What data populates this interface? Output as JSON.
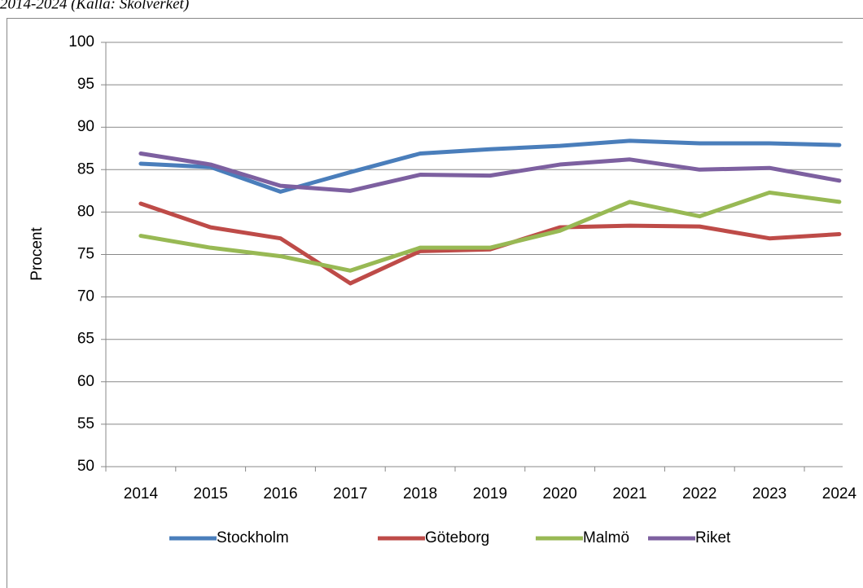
{
  "chart_data": {
    "type": "line",
    "subtitle": "2014-2024 (Källa: Skolverket)",
    "y_label": "Procent",
    "categories": [
      "2014",
      "2015",
      "2016",
      "2017",
      "2018",
      "2019",
      "2020",
      "2021",
      "2022",
      "2023",
      "2024"
    ],
    "series": [
      {
        "name": "Stockholm",
        "color": "#4a7ebb",
        "values": [
          85.7,
          85.3,
          82.4,
          84.7,
          86.9,
          87.4,
          87.8,
          88.4,
          88.1,
          88.1,
          87.9
        ]
      },
      {
        "name": "Göteborg",
        "color": "#be4b48",
        "values": [
          81.0,
          78.2,
          76.9,
          71.6,
          75.4,
          75.6,
          78.2,
          78.4,
          78.3,
          76.9,
          77.4
        ]
      },
      {
        "name": "Malmö",
        "color": "#98b954",
        "values": [
          77.2,
          75.8,
          74.8,
          73.1,
          75.8,
          75.8,
          77.8,
          81.2,
          79.5,
          82.3,
          81.2
        ]
      },
      {
        "name": "Riket",
        "color": "#7d60a0",
        "values": [
          86.9,
          85.6,
          83.1,
          82.5,
          84.4,
          84.3,
          85.6,
          86.2,
          85.0,
          85.2,
          83.7
        ]
      }
    ],
    "ylim": [
      50,
      100
    ],
    "yticks": [
      50,
      55,
      60,
      65,
      70,
      75,
      80,
      85,
      90,
      95,
      100
    ],
    "grid": true,
    "legend": "bottom"
  }
}
